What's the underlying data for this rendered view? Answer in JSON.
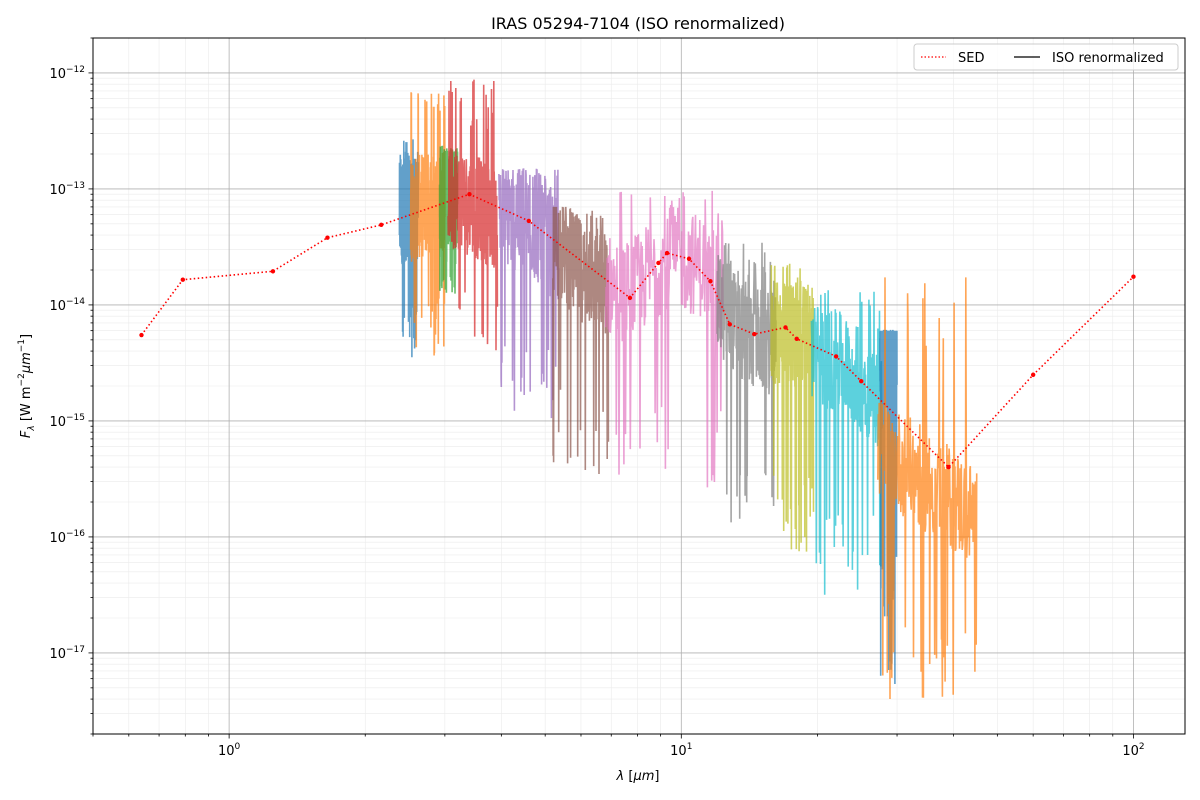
{
  "chart_data": {
    "type": "line",
    "title": "IRAS 05294-7104 (ISO renormalized)",
    "xlabel": "λ [μm]",
    "ylabel": "F_λ [W m^-2 μm^-1]",
    "xscale": "log",
    "yscale": "log",
    "xlim": [
      0.5,
      130
    ],
    "ylim": [
      2e-18,
      2e-12
    ],
    "grid": true,
    "legend_position": "top-right",
    "x_tick_labels": [
      {
        "value": 1,
        "base": "10",
        "exp": "0"
      },
      {
        "value": 10,
        "base": "10",
        "exp": "1"
      },
      {
        "value": 100,
        "base": "10",
        "exp": "2"
      }
    ],
    "y_tick_labels": [
      {
        "value": 1e-17,
        "base": "10",
        "exp": "−17"
      },
      {
        "value": 1e-16,
        "base": "10",
        "exp": "−16"
      },
      {
        "value": 1e-15,
        "base": "10",
        "exp": "−15"
      },
      {
        "value": 1e-14,
        "base": "10",
        "exp": "−14"
      },
      {
        "value": 1e-13,
        "base": "10",
        "exp": "−13"
      },
      {
        "value": 1e-12,
        "base": "10",
        "exp": "−12"
      }
    ],
    "legend": [
      {
        "label": "SED",
        "color": "#ff0000",
        "style": "dotted"
      },
      {
        "label": "ISO renormalized",
        "color": "#000000",
        "style": "solid"
      }
    ],
    "sed_series": {
      "name": "SED",
      "color": "#ff0000",
      "x": [
        0.64,
        0.79,
        1.25,
        1.65,
        2.17,
        3.4,
        4.6,
        7.7,
        8.9,
        9.3,
        10.4,
        11.6,
        12.8,
        14.5,
        17.0,
        18.0,
        22.0,
        25.0,
        39.0,
        60.0,
        100.0
      ],
      "y": [
        5.5e-15,
        1.65e-14,
        1.95e-14,
        3.8e-14,
        4.9e-14,
        9e-14,
        5.3e-14,
        1.15e-14,
        2.3e-14,
        2.8e-14,
        2.5e-14,
        1.6e-14,
        6.8e-15,
        5.6e-15,
        6.4e-15,
        5.1e-15,
        3.6e-15,
        2.2e-15,
        4e-16,
        2.5e-15,
        1.75e-14
      ]
    },
    "iso_segments": [
      {
        "color": "#1f77b4",
        "xrange": [
          2.38,
          2.62
        ],
        "trend": [
          [
            2.38,
            6e-14
          ],
          [
            2.5,
            7e-14
          ],
          [
            2.62,
            6.5e-14
          ]
        ],
        "ymin": 3.5e-15,
        "ymax": 2.7e-13
      },
      {
        "color": "#ff7f0e",
        "xrange": [
          2.52,
          3.0
        ],
        "trend": [
          [
            2.52,
            6.5e-14
          ],
          [
            2.75,
            7.5e-14
          ],
          [
            3.0,
            8e-14
          ]
        ],
        "ymin": 3.3e-15,
        "ymax": 8e-13
      },
      {
        "color": "#2ca02c",
        "xrange": [
          2.92,
          3.2
        ],
        "trend": [
          [
            2.92,
            9e-14
          ],
          [
            3.05,
            8.5e-14
          ],
          [
            3.2,
            8e-14
          ]
        ],
        "ymin": 1.2e-14,
        "ymax": 2.6e-13
      },
      {
        "color": "#d62728",
        "xrange": [
          3.05,
          3.92
        ],
        "trend": [
          [
            3.05,
            9e-14
          ],
          [
            3.5,
            7e-14
          ],
          [
            3.92,
            5.5e-14
          ]
        ],
        "ymin": 4e-15,
        "ymax": 1e-12
      },
      {
        "color": "#9467bd",
        "xrange": [
          3.95,
          5.35
        ],
        "trend": [
          [
            3.95,
            6e-14
          ],
          [
            4.6,
            5e-14
          ],
          [
            5.35,
            2.8e-14
          ]
        ],
        "ymin": 1e-15,
        "ymax": 1.6e-13
      },
      {
        "color": "#8c564b",
        "xrange": [
          5.2,
          6.9
        ],
        "trend": [
          [
            5.2,
            3.5e-14
          ],
          [
            6.0,
            2e-14
          ],
          [
            6.9,
            1.5e-14
          ]
        ],
        "ymin": 3e-16,
        "ymax": 7e-14
      },
      {
        "color": "#e377c2",
        "xrange": [
          6.8,
          12.4
        ],
        "trend": [
          [
            6.8,
            1.5e-14
          ],
          [
            7.7,
            1.3e-14
          ],
          [
            9.3,
            2.6e-14
          ],
          [
            11.0,
            2.2e-14
          ],
          [
            12.4,
            1.5e-14
          ]
        ],
        "ymin": 2.3e-16,
        "ymax": 1e-13
      },
      {
        "color": "#7f7f7f",
        "xrange": [
          12.0,
          16.2
        ],
        "trend": [
          [
            12.0,
            1e-14
          ],
          [
            14.0,
            5.5e-15
          ],
          [
            16.2,
            4.5e-15
          ]
        ],
        "ymin": 1.2e-16,
        "ymax": 3.5e-14
      },
      {
        "color": "#bcbd22",
        "xrange": [
          15.8,
          19.6
        ],
        "trend": [
          [
            15.8,
            5.5e-15
          ],
          [
            17.5,
            5.8e-15
          ],
          [
            19.6,
            4.5e-15
          ]
        ],
        "ymin": 6e-17,
        "ymax": 2.3e-14
      },
      {
        "color": "#17becf",
        "xrange": [
          19.4,
          27.8
        ],
        "trend": [
          [
            19.4,
            4e-15
          ],
          [
            23.0,
            3e-15
          ],
          [
            27.8,
            1.5e-15
          ]
        ],
        "ymin": 3e-17,
        "ymax": 1.4e-14
      },
      {
        "color": "#1f77b4",
        "xrange": [
          27.5,
          30.0
        ],
        "trend": [
          [
            27.5,
            3e-15
          ],
          [
            28.8,
            4e-15
          ],
          [
            30.0,
            4.5e-15
          ]
        ],
        "ymin": 5e-18,
        "ymax": 6e-15
      },
      {
        "color": "#ff7f0e",
        "xrange": [
          27.2,
          45.0
        ],
        "trend": [
          [
            27.2,
            6e-16
          ],
          [
            35.0,
            3e-16
          ],
          [
            45.0,
            1.5e-16
          ]
        ],
        "ymin": 4e-18,
        "ymax": 2e-14
      }
    ]
  }
}
